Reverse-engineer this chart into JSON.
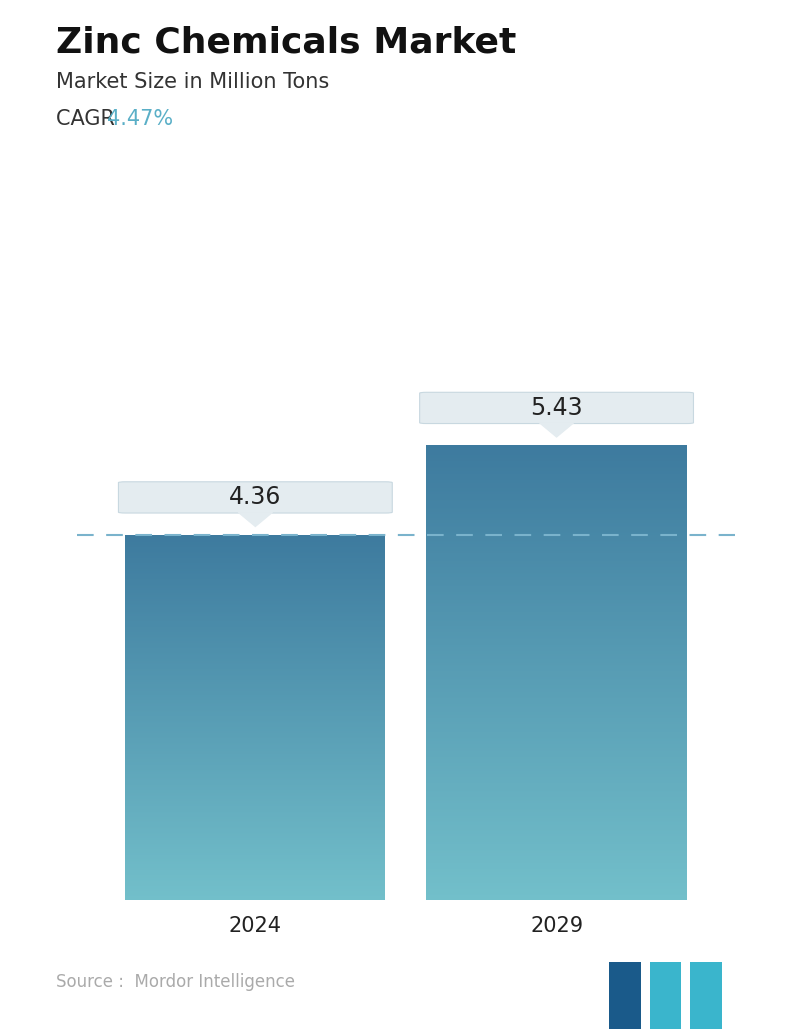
{
  "title": "Zinc Chemicals Market",
  "subtitle": "Market Size in Million Tons",
  "cagr_label": "CAGR ",
  "cagr_value": "4.47%",
  "cagr_color": "#5aafc7",
  "categories": [
    "2024",
    "2029"
  ],
  "values": [
    4.36,
    5.43
  ],
  "bar_color_top": "#3d7a9e",
  "bar_color_bottom": "#72bfca",
  "dashed_line_color": "#7ab3cc",
  "dashed_line_y": 4.36,
  "label_box_color": "#e4ecf0",
  "label_box_border": "#c8d8e0",
  "source_text": "Source :  Mordor Intelligence",
  "source_color": "#aaaaaa",
  "background_color": "#ffffff",
  "title_fontsize": 26,
  "subtitle_fontsize": 15,
  "cagr_fontsize": 15,
  "bar_label_fontsize": 17,
  "tick_fontsize": 15,
  "source_fontsize": 12,
  "ylim": [
    0,
    6.8
  ],
  "bar_positions": [
    0.28,
    0.72
  ],
  "bar_width": 0.38
}
